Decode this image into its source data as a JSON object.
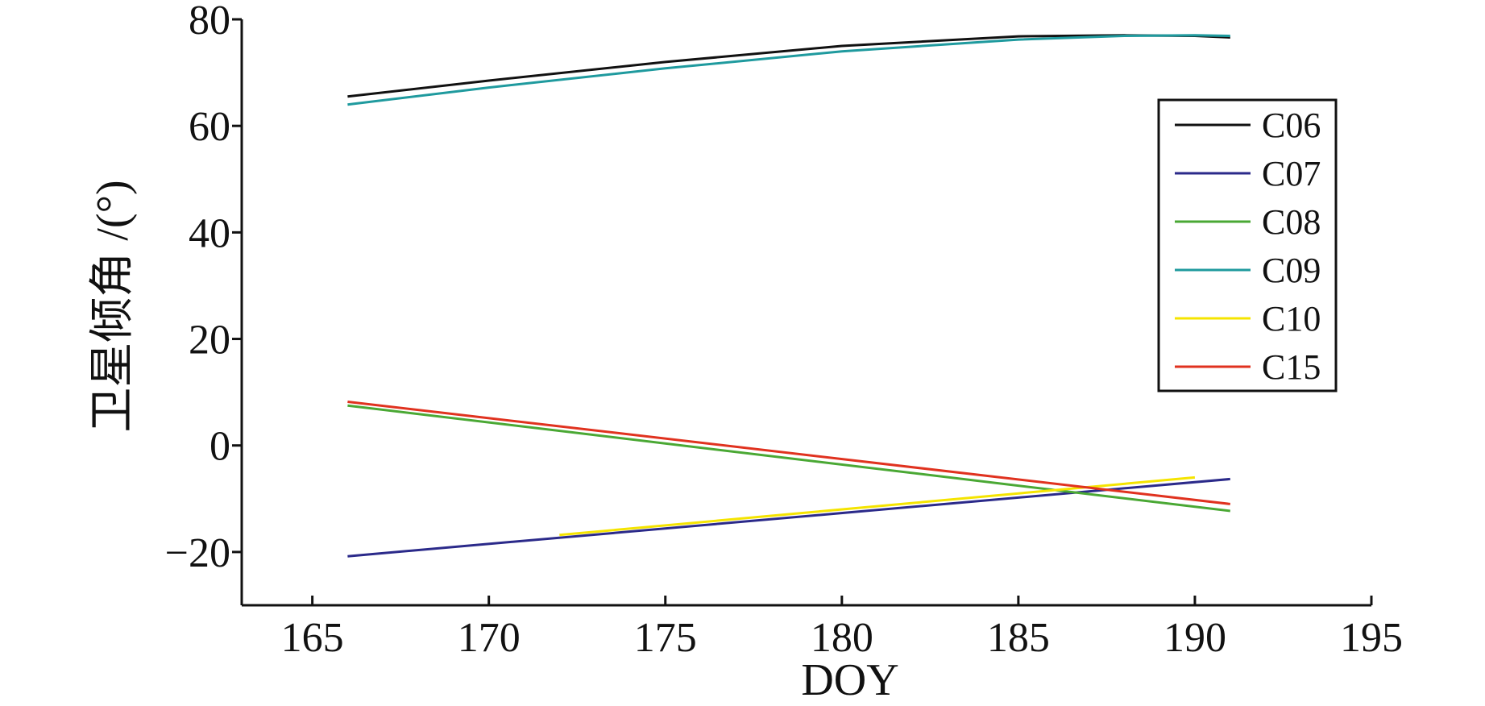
{
  "chart_data": {
    "type": "line",
    "xlabel": "DOY",
    "ylabel": "卫星倾角 /(°)",
    "xlim": [
      163,
      195
    ],
    "ylim": [
      -30,
      80
    ],
    "xticks": [
      165,
      170,
      175,
      180,
      185,
      190,
      195
    ],
    "yticks": [
      -20,
      0,
      20,
      40,
      60,
      80
    ],
    "xtick_labels": [
      "165",
      "170",
      "175",
      "180",
      "185",
      "190",
      "195"
    ],
    "ytick_labels": [
      "−20",
      "0",
      "20",
      "40",
      "60",
      "80"
    ],
    "grid": false,
    "legend_position": "top-right",
    "series": [
      {
        "name": "C06",
        "color": "#111111",
        "x": [
          166,
          170,
          175,
          180,
          185,
          188,
          190,
          191
        ],
        "y": [
          65.5,
          68.5,
          72.0,
          75.0,
          76.8,
          77.0,
          76.9,
          76.6
        ]
      },
      {
        "name": "C07",
        "color": "#2b2a8a",
        "x": [
          166,
          191
        ],
        "y": [
          -20.8,
          -6.3
        ]
      },
      {
        "name": "C08",
        "color": "#4aa834",
        "x": [
          166,
          191
        ],
        "y": [
          7.5,
          -12.3
        ]
      },
      {
        "name": "C09",
        "color": "#1f9a9e",
        "x": [
          166,
          170,
          175,
          180,
          185,
          188,
          190,
          191
        ],
        "y": [
          64.0,
          67.2,
          70.8,
          74.0,
          76.2,
          76.9,
          77.0,
          76.9
        ]
      },
      {
        "name": "C10",
        "color": "#f5e400",
        "x": [
          172,
          190
        ],
        "y": [
          -16.8,
          -6.0
        ]
      },
      {
        "name": "C15",
        "color": "#e0321f",
        "x": [
          166,
          191
        ],
        "y": [
          8.2,
          -11.0
        ]
      }
    ]
  }
}
